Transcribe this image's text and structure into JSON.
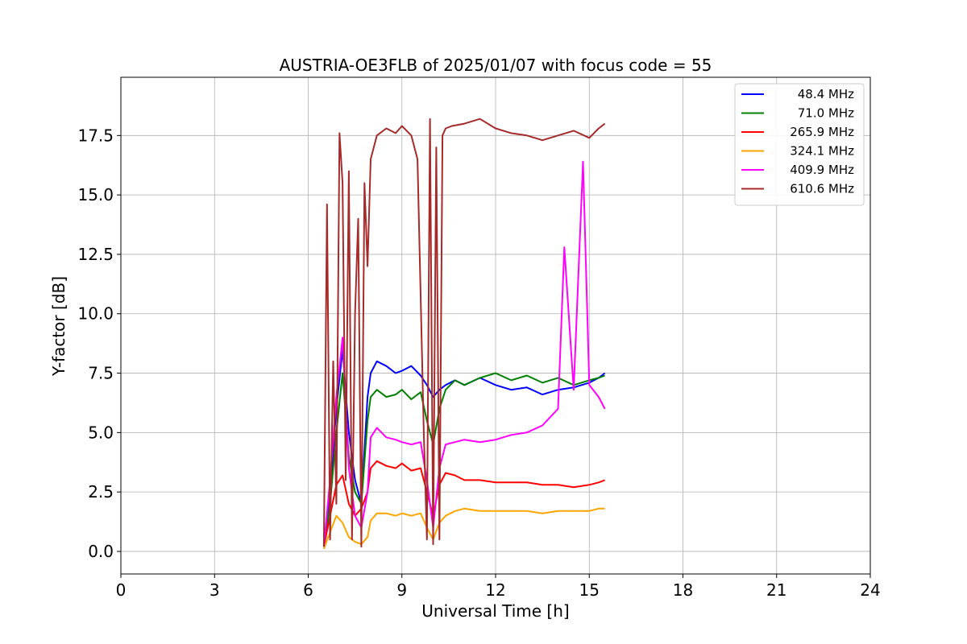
{
  "chart_data": {
    "type": "line",
    "title": "AUSTRIA-OE3FLB of 2025/01/07 with focus code = 55",
    "xlabel": "Universal Time [h]",
    "ylabel": "Y-factor [dB]",
    "xlim": [
      0,
      24
    ],
    "ylim": [
      -0.95,
      19.95
    ],
    "xticks": [
      0,
      3,
      6,
      9,
      12,
      15,
      18,
      21,
      24
    ],
    "xtick_labels": [
      "0",
      "3",
      "6",
      "9",
      "12",
      "15",
      "18",
      "21",
      "24"
    ],
    "yticks": [
      0,
      2.5,
      5,
      7.5,
      10,
      12.5,
      15,
      17.5
    ],
    "ytick_labels": [
      "0.0",
      "2.5",
      "5.0",
      "7.5",
      "10.0",
      "12.5",
      "15.0",
      "17.5"
    ],
    "grid": true,
    "legend_position": "top-right",
    "series": [
      {
        "name": "48.4 MHz",
        "color": "#0000ff",
        "x": [
          6.5,
          6.7,
          6.9,
          7.1,
          7.3,
          7.5,
          7.7,
          7.9,
          8.0,
          8.2,
          8.5,
          8.8,
          9.0,
          9.3,
          9.6,
          9.8,
          10.0,
          10.2,
          10.4,
          10.7,
          11.0,
          11.5,
          12.0,
          12.5,
          13.0,
          13.5,
          14.0,
          14.5,
          15.0,
          15.3,
          15.5
        ],
        "y": [
          0.3,
          2.5,
          6.0,
          8.5,
          5.0,
          3.0,
          2.0,
          6.5,
          7.5,
          8.0,
          7.8,
          7.5,
          7.6,
          7.8,
          7.4,
          7.0,
          6.5,
          6.8,
          7.0,
          7.2,
          7.0,
          7.3,
          7.0,
          6.8,
          6.9,
          6.6,
          6.8,
          6.9,
          7.1,
          7.3,
          7.5
        ]
      },
      {
        "name": "71.0 MHz",
        "color": "#008000",
        "x": [
          6.5,
          6.7,
          6.9,
          7.1,
          7.3,
          7.5,
          7.7,
          7.9,
          8.0,
          8.2,
          8.5,
          8.8,
          9.0,
          9.3,
          9.6,
          9.8,
          10.0,
          10.2,
          10.4,
          10.7,
          11.0,
          11.5,
          12.0,
          12.5,
          13.0,
          13.5,
          14.0,
          14.5,
          15.0,
          15.3,
          15.5
        ],
        "y": [
          0.2,
          2.0,
          5.0,
          7.5,
          4.0,
          2.5,
          2.0,
          5.5,
          6.5,
          6.8,
          6.5,
          6.6,
          6.8,
          6.4,
          6.7,
          5.5,
          4.5,
          6.0,
          6.8,
          7.2,
          7.0,
          7.3,
          7.5,
          7.2,
          7.4,
          7.1,
          7.3,
          7.0,
          7.2,
          7.3,
          7.4
        ]
      },
      {
        "name": "265.9 MHz",
        "color": "#ff0000",
        "x": [
          6.5,
          6.7,
          6.9,
          7.1,
          7.3,
          7.5,
          7.7,
          7.9,
          8.0,
          8.2,
          8.5,
          8.8,
          9.0,
          9.3,
          9.6,
          9.8,
          10.0,
          10.2,
          10.4,
          10.7,
          11.0,
          11.5,
          12.0,
          12.5,
          13.0,
          13.5,
          14.0,
          14.5,
          15.0,
          15.3,
          15.5
        ],
        "y": [
          0.2,
          1.5,
          2.8,
          3.2,
          2.0,
          1.5,
          1.8,
          2.5,
          3.5,
          3.8,
          3.6,
          3.5,
          3.7,
          3.4,
          3.5,
          2.5,
          1.5,
          2.8,
          3.3,
          3.2,
          3.0,
          3.0,
          2.9,
          2.9,
          2.9,
          2.8,
          2.8,
          2.7,
          2.8,
          2.9,
          3.0
        ]
      },
      {
        "name": "324.1 MHz",
        "color": "#ffa500",
        "x": [
          6.5,
          6.7,
          6.9,
          7.1,
          7.3,
          7.5,
          7.7,
          7.9,
          8.0,
          8.2,
          8.5,
          8.8,
          9.0,
          9.3,
          9.6,
          9.8,
          10.0,
          10.2,
          10.4,
          10.7,
          11.0,
          11.5,
          12.0,
          12.5,
          13.0,
          13.5,
          14.0,
          14.5,
          15.0,
          15.3,
          15.5
        ],
        "y": [
          0.1,
          0.8,
          1.5,
          1.2,
          0.6,
          0.4,
          0.3,
          0.6,
          1.3,
          1.6,
          1.6,
          1.5,
          1.6,
          1.5,
          1.6,
          1.0,
          0.5,
          1.2,
          1.5,
          1.7,
          1.8,
          1.7,
          1.7,
          1.7,
          1.7,
          1.6,
          1.7,
          1.7,
          1.7,
          1.8,
          1.8
        ]
      },
      {
        "name": "409.9 MHz",
        "color": "#ff00ff",
        "x": [
          6.5,
          6.7,
          6.9,
          7.1,
          7.3,
          7.5,
          7.7,
          7.9,
          8.0,
          8.2,
          8.5,
          8.8,
          9.0,
          9.3,
          9.6,
          9.8,
          10.0,
          10.2,
          10.4,
          10.7,
          11.0,
          11.5,
          12.0,
          12.5,
          13.0,
          13.5,
          14.0,
          14.2,
          14.5,
          14.8,
          15.0,
          15.3,
          15.5
        ],
        "y": [
          0.2,
          3.0,
          6.5,
          9.0,
          3.5,
          1.5,
          1.0,
          2.5,
          4.8,
          5.2,
          4.8,
          4.7,
          4.6,
          4.5,
          4.6,
          3.0,
          1.0,
          3.5,
          4.5,
          4.6,
          4.7,
          4.6,
          4.7,
          4.9,
          5.0,
          5.3,
          6.0,
          12.8,
          6.8,
          16.4,
          7.0,
          6.5,
          6.0
        ]
      },
      {
        "name": "610.6 MHz",
        "color": "#a52a2a",
        "x": [
          6.5,
          6.6,
          6.7,
          6.8,
          6.9,
          7.0,
          7.1,
          7.2,
          7.3,
          7.4,
          7.5,
          7.6,
          7.7,
          7.8,
          7.9,
          8.0,
          8.2,
          8.5,
          8.8,
          9.0,
          9.3,
          9.5,
          9.7,
          9.8,
          9.9,
          10.0,
          10.1,
          10.2,
          10.3,
          10.4,
          10.6,
          11.0,
          11.5,
          12.0,
          12.5,
          13.0,
          13.5,
          14.0,
          14.5,
          15.0,
          15.3,
          15.5
        ],
        "y": [
          0.2,
          14.6,
          0.5,
          8.0,
          2.0,
          17.6,
          15.5,
          3.0,
          16.0,
          0.5,
          10.0,
          14.0,
          0.2,
          15.5,
          12.0,
          16.5,
          17.5,
          17.8,
          17.6,
          17.9,
          17.5,
          16.5,
          5.0,
          0.5,
          18.2,
          0.3,
          17.0,
          0.5,
          17.5,
          17.8,
          17.9,
          18.0,
          18.2,
          17.8,
          17.6,
          17.5,
          17.3,
          17.5,
          17.7,
          17.4,
          17.8,
          18.0
        ]
      }
    ]
  }
}
